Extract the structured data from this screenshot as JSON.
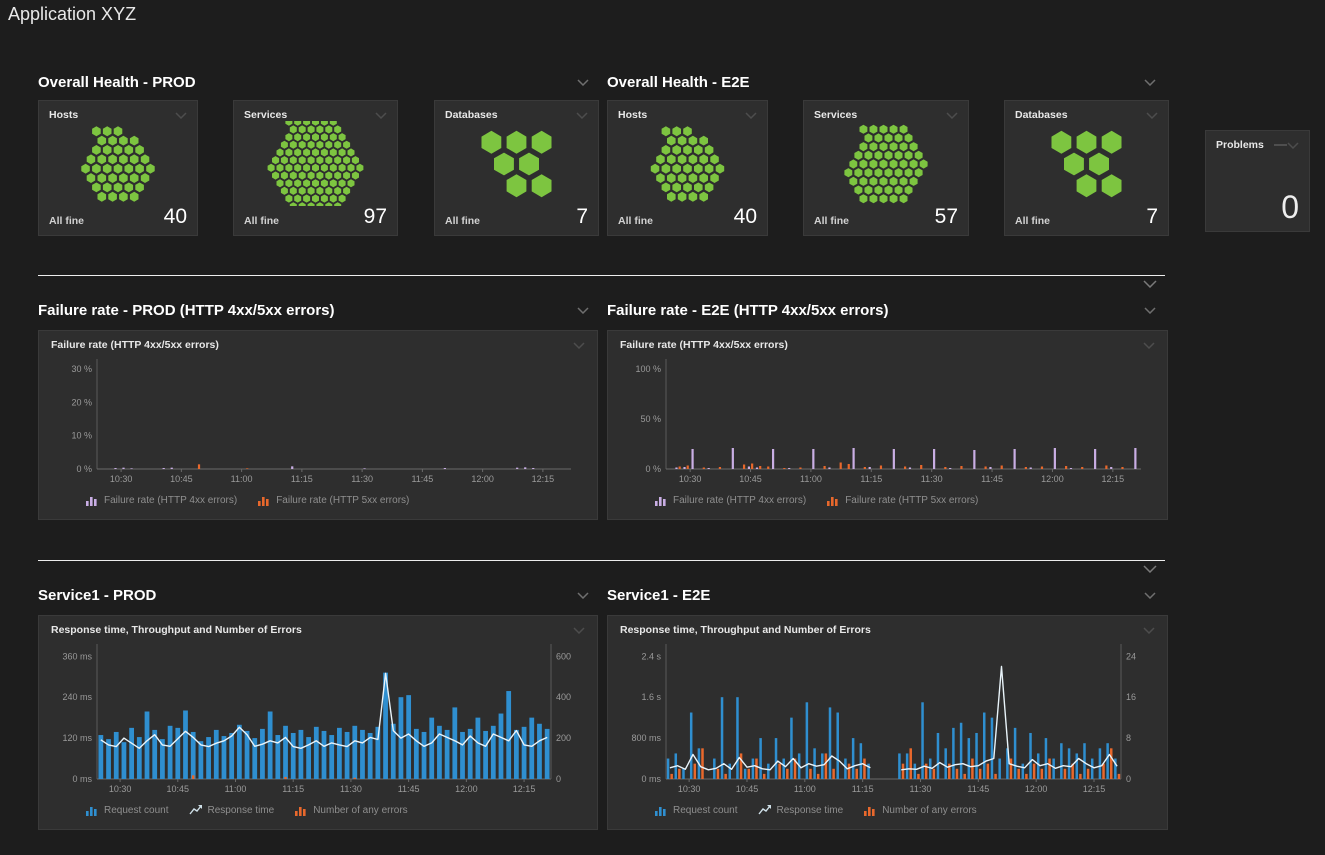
{
  "page": {
    "title": "Application XYZ"
  },
  "colors": {
    "green": "#7dc540",
    "blue": "#2f8fd0",
    "orange": "#e8682c",
    "lavender": "#c9aee4",
    "line": "#e9f4fa",
    "tile_bg": "#2e2e2e",
    "page_bg": "#1d1d1d"
  },
  "sections": {
    "health_prod": {
      "title": "Overall Health - PROD"
    },
    "health_e2e": {
      "title": "Overall Health - E2E"
    },
    "failure_prod": {
      "title": "Failure rate - PROD (HTTP 4xx/5xx errors)"
    },
    "failure_e2e": {
      "title": "Failure rate - E2E (HTTP 4xx/5xx errors)"
    },
    "service_prod": {
      "title": "Service1 - PROD"
    },
    "service_e2e": {
      "title": "Service1 - E2E"
    }
  },
  "health_tiles": {
    "prod_hosts": {
      "label": "Hosts",
      "status": "All fine",
      "count": "40",
      "hexes": 40,
      "hex_r": 5.6
    },
    "prod_services": {
      "label": "Services",
      "status": "All fine",
      "count": "97",
      "hexes": 97,
      "hex_r": 4.6
    },
    "prod_databases": {
      "label": "Databases",
      "status": "All fine",
      "count": "7",
      "hexes": 7,
      "hex_r": 13
    },
    "e2e_hosts": {
      "label": "Hosts",
      "status": "All fine",
      "count": "40",
      "hexes": 40,
      "hex_r": 5.6
    },
    "e2e_services": {
      "label": "Services",
      "status": "All fine",
      "count": "57",
      "hexes": 57,
      "hex_r": 5.2
    },
    "e2e_databases": {
      "label": "Databases",
      "status": "All fine",
      "count": "7",
      "hexes": 7,
      "hex_r": 13
    },
    "problems": {
      "label": "Problems",
      "count": "0"
    }
  },
  "chart_data": [
    {
      "id": "failure_prod",
      "type": "bar",
      "title": "Failure rate (HTTP 4xx/5xx errors)",
      "x": {
        "start": 624,
        "end": 742,
        "ticks": [
          {
            "m": 630,
            "label": "10:30"
          },
          {
            "m": 645,
            "label": "10:45"
          },
          {
            "m": 660,
            "label": "11:00"
          },
          {
            "m": 675,
            "label": "11:15"
          },
          {
            "m": 690,
            "label": "11:30"
          },
          {
            "m": 705,
            "label": "11:45"
          },
          {
            "m": 720,
            "label": "12:00"
          },
          {
            "m": 735,
            "label": "12:15"
          }
        ]
      },
      "y_left": {
        "max": 33,
        "ticks": [
          {
            "v": 0,
            "label": "0 %"
          },
          {
            "v": 10,
            "label": "10 %"
          },
          {
            "v": 20,
            "label": "20 %"
          },
          {
            "v": 30,
            "label": "30 %"
          }
        ]
      },
      "y_right": null,
      "series": [
        {
          "name": "Failure rate (HTTP 4xx errors)",
          "color": "#c9aee4",
          "kind": "bar",
          "axis": "left",
          "bw": 2.2,
          "dx": -1.6,
          "values": [
            0,
            0,
            0.3,
            0.4,
            0.2,
            0,
            0,
            0,
            0.3,
            0.4,
            0,
            0,
            0,
            0,
            0,
            0,
            0,
            0,
            0,
            0,
            0,
            0,
            0,
            0,
            0.8,
            0,
            0,
            0,
            0,
            0,
            0,
            0,
            0,
            0.2,
            0,
            0,
            0,
            0,
            0,
            0,
            0,
            0,
            0,
            0.3,
            0,
            0,
            0,
            0,
            0,
            0,
            0,
            0,
            0.4,
            0.5,
            0.3,
            0,
            0,
            0,
            0
          ]
        },
        {
          "name": "Failure rate (HTTP 5xx errors)",
          "color": "#e8682c",
          "kind": "bar",
          "axis": "left",
          "bw": 2.2,
          "dx": 1.6,
          "values": [
            0,
            0,
            0,
            0,
            0,
            0,
            0,
            0,
            0,
            0,
            0,
            0,
            1.4,
            0,
            0,
            0,
            0,
            0,
            0.2,
            0,
            0,
            0,
            0,
            0,
            0,
            0,
            0,
            0,
            0,
            0,
            0,
            0,
            0,
            0,
            0,
            0,
            0,
            0,
            0,
            0,
            0,
            0,
            0,
            0,
            0,
            0,
            0,
            0,
            0,
            0,
            0,
            0,
            0,
            0,
            0,
            0,
            0,
            0,
            0
          ]
        }
      ]
    },
    {
      "id": "failure_e2e",
      "type": "bar",
      "title": "Failure rate  (HTTP 4xx/5xx errors)",
      "x": {
        "start": 624,
        "end": 742,
        "ticks": [
          {
            "m": 630,
            "label": "10:30"
          },
          {
            "m": 645,
            "label": "10:45"
          },
          {
            "m": 660,
            "label": "11:00"
          },
          {
            "m": 675,
            "label": "11:15"
          },
          {
            "m": 690,
            "label": "11:30"
          },
          {
            "m": 705,
            "label": "11:45"
          },
          {
            "m": 720,
            "label": "12:00"
          },
          {
            "m": 735,
            "label": "12:15"
          }
        ]
      },
      "y_left": {
        "max": 110,
        "ticks": [
          {
            "v": 0,
            "label": "0 %"
          },
          {
            "v": 50,
            "label": "50 %"
          },
          {
            "v": 100,
            "label": "100 %"
          }
        ]
      },
      "y_right": null,
      "series": [
        {
          "name": "Failure rate (HTTP 4xx errors)",
          "color": "#c9aee4",
          "kind": "bar",
          "axis": "left",
          "bw": 2.2,
          "dx": -1.6,
          "values": [
            0,
            1.5,
            2,
            20,
            0,
            1,
            0,
            0,
            21,
            0,
            2.5,
            1.5,
            0,
            20,
            0,
            1,
            0,
            0,
            20,
            0,
            1.5,
            0,
            0,
            21,
            0,
            2,
            0,
            0,
            20,
            0,
            1.5,
            0,
            0,
            20,
            0,
            1,
            0,
            0,
            19,
            0,
            2,
            0,
            0,
            20,
            0,
            1.5,
            0,
            0,
            21,
            0,
            1,
            0,
            0,
            20,
            0,
            2,
            0,
            0,
            21
          ]
        },
        {
          "name": "Failure rate (HTTP 5xx errors)",
          "color": "#e8682c",
          "kind": "bar",
          "axis": "left",
          "bw": 2.2,
          "dx": 1.6,
          "values": [
            0,
            2.5,
            3.5,
            0,
            1.5,
            0,
            2,
            0,
            0,
            4.5,
            5.5,
            3,
            2.5,
            0,
            1,
            0,
            1.5,
            0,
            0,
            3,
            0,
            6.5,
            5,
            0,
            2,
            0,
            3.5,
            0,
            0,
            2.5,
            0,
            4,
            0,
            0,
            2,
            0,
            3,
            0,
            0,
            2.5,
            0,
            3.5,
            0,
            0,
            2,
            0,
            2.5,
            0,
            0,
            3,
            0,
            2,
            0,
            0,
            3.5,
            0,
            2,
            0,
            0
          ]
        }
      ]
    },
    {
      "id": "service_prod",
      "type": "bar",
      "title": "Response time, Throughput and Number of Errors",
      "x": {
        "start": 624,
        "end": 742,
        "ticks": [
          {
            "m": 630,
            "label": "10:30"
          },
          {
            "m": 645,
            "label": "10:45"
          },
          {
            "m": 660,
            "label": "11:00"
          },
          {
            "m": 675,
            "label": "11:15"
          },
          {
            "m": 690,
            "label": "11:30"
          },
          {
            "m": 705,
            "label": "11:45"
          },
          {
            "m": 720,
            "label": "12:00"
          },
          {
            "m": 735,
            "label": "12:15"
          }
        ]
      },
      "y_left": {
        "max": 396,
        "ticks": [
          {
            "v": 0,
            "label": "0 ms"
          },
          {
            "v": 120,
            "label": "120 ms"
          },
          {
            "v": 240,
            "label": "240 ms"
          },
          {
            "v": 360,
            "label": "360 ms"
          }
        ]
      },
      "y_right": {
        "max": 660,
        "ticks": [
          {
            "v": 0,
            "label": "0"
          },
          {
            "v": 200,
            "label": "200"
          },
          {
            "v": 400,
            "label": "400"
          },
          {
            "v": 600,
            "label": "600"
          }
        ]
      },
      "series": [
        {
          "name": "Request count",
          "color": "#2f8fd0",
          "kind": "bar",
          "axis": "right",
          "bw": "auto",
          "dx": 0,
          "values": [
            215,
            195,
            230,
            180,
            250,
            205,
            330,
            240,
            195,
            260,
            250,
            335,
            230,
            185,
            205,
            240,
            210,
            225,
            265,
            235,
            200,
            245,
            330,
            215,
            260,
            225,
            240,
            205,
            255,
            235,
            215,
            250,
            230,
            260,
            240,
            225,
            255,
            520,
            270,
            400,
            410,
            245,
            230,
            300,
            260,
            240,
            350,
            230,
            245,
            300,
            235,
            260,
            320,
            430,
            240,
            255,
            300,
            270,
            245
          ]
        },
        {
          "name": "Response time",
          "color": "#e9f4fa",
          "kind": "line",
          "axis": "left",
          "values": [
            115,
            100,
            95,
            120,
            105,
            90,
            112,
            130,
            100,
            96,
            118,
            140,
            122,
            100,
            95,
            105,
            112,
            126,
            152,
            130,
            96,
            102,
            112,
            106,
            122,
            95,
            90,
            100,
            112,
            96,
            106,
            100,
            95,
            112,
            106,
            122,
            116,
            310,
            142,
            120,
            132,
            112,
            96,
            106,
            132,
            122,
            112,
            100,
            126,
            106,
            96,
            132,
            122,
            112,
            142,
            100,
            96,
            112,
            122
          ]
        },
        {
          "name": "Number of any errors",
          "color": "#e8682c",
          "kind": "bar",
          "axis": "right",
          "bw": 2.5,
          "dx": 0,
          "values": [
            0,
            0,
            0,
            0,
            0,
            0,
            0,
            0,
            0,
            0,
            0,
            0,
            18,
            0,
            0,
            0,
            0,
            0,
            0,
            0,
            0,
            0,
            0,
            0,
            10,
            0,
            0,
            0,
            0,
            0,
            0,
            0,
            0,
            6,
            0,
            0,
            0,
            0,
            0,
            0,
            0,
            0,
            0,
            0,
            0,
            0,
            0,
            0,
            0,
            0,
            0,
            0,
            0,
            0,
            0,
            0,
            0,
            0,
            0
          ]
        }
      ]
    },
    {
      "id": "service_e2e",
      "type": "bar",
      "title": "Response time, Throughput and Number of Errors",
      "x": {
        "start": 624,
        "end": 742,
        "ticks": [
          {
            "m": 630,
            "label": "10:30"
          },
          {
            "m": 645,
            "label": "10:45"
          },
          {
            "m": 660,
            "label": "11:00"
          },
          {
            "m": 675,
            "label": "11:15"
          },
          {
            "m": 690,
            "label": "11:30"
          },
          {
            "m": 705,
            "label": "11:45"
          },
          {
            "m": 720,
            "label": "12:00"
          },
          {
            "m": 735,
            "label": "12:15"
          }
        ]
      },
      "y_left": {
        "max": 2640,
        "ticks": [
          {
            "v": 0,
            "label": "0 ms"
          },
          {
            "v": 800,
            "label": "800 ms"
          },
          {
            "v": 1600,
            "label": "1.6 s"
          },
          {
            "v": 2400,
            "label": "2.4 s"
          }
        ]
      },
      "y_right": {
        "max": 26.4,
        "ticks": [
          {
            "v": 0,
            "label": "0"
          },
          {
            "v": 8,
            "label": "8"
          },
          {
            "v": 16,
            "label": "16"
          },
          {
            "v": 24,
            "label": "24"
          }
        ]
      },
      "series": [
        {
          "name": "Request count",
          "color": "#2f8fd0",
          "kind": "bar",
          "axis": "right",
          "bw": 2.5,
          "dx": -1.8,
          "values": [
            4,
            5,
            2,
            13,
            6,
            0,
            4,
            16,
            3,
            16,
            2,
            4,
            8,
            3,
            8,
            4,
            12,
            5,
            15,
            6,
            5,
            14,
            13,
            4,
            8,
            7,
            3,
            0,
            0,
            0,
            5,
            5,
            3,
            15,
            4,
            9,
            6,
            10,
            11,
            8,
            9,
            13,
            12,
            4,
            6,
            10,
            3,
            9,
            5,
            8,
            4,
            7,
            6,
            5,
            7,
            4,
            6,
            7,
            4
          ]
        },
        {
          "name": "Response time",
          "color": "#e9f4fa",
          "kind": "line",
          "axis": "left",
          "values": [
            220,
            260,
            190,
            480,
            240,
            180,
            210,
            300,
            190,
            420,
            230,
            260,
            200,
            180,
            350,
            240,
            400,
            220,
            300,
            250,
            280,
            450,
            350,
            200,
            260,
            300,
            220,
            null,
            null,
            null,
            180,
            200,
            190,
            250,
            210,
            320,
            230,
            280,
            300,
            240,
            260,
            350,
            400,
            2200,
            300,
            250,
            220,
            380,
            260,
            300,
            210,
            260,
            240,
            400,
            300,
            220,
            260,
            480,
            250
          ]
        },
        {
          "name": "Number of any errors",
          "color": "#e8682c",
          "kind": "bar",
          "axis": "right",
          "bw": 2.5,
          "dx": 1.8,
          "values": [
            1,
            2,
            0,
            3,
            6,
            0,
            2,
            1,
            0,
            5,
            2,
            4,
            1,
            0,
            3,
            2,
            4,
            0,
            2,
            1,
            5,
            2,
            0,
            3,
            2,
            4,
            0,
            0,
            0,
            0,
            3,
            6,
            1,
            3,
            2,
            0,
            3,
            2,
            1,
            4,
            2,
            3,
            1,
            0,
            4,
            2,
            1,
            3,
            2,
            4,
            0,
            2,
            3,
            1,
            2,
            0,
            3,
            6,
            1
          ]
        }
      ]
    }
  ]
}
